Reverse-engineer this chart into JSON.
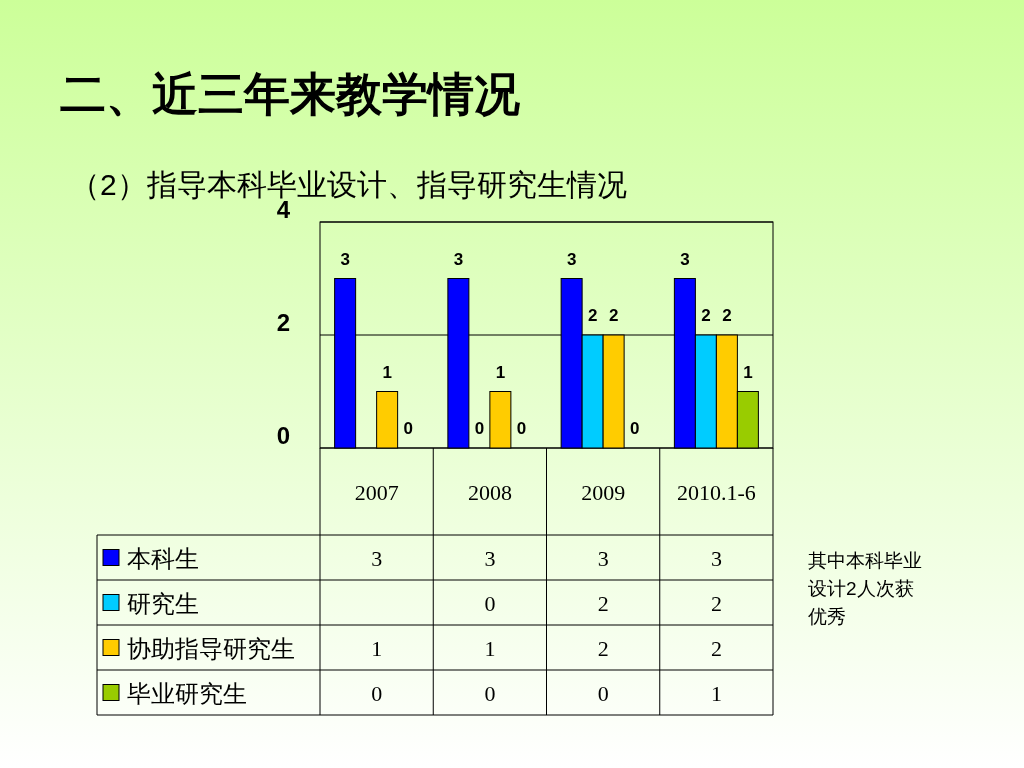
{
  "chart_data": {
    "type": "bar",
    "title": "二、近三年来教学情况",
    "subtitle": "（2）指导本科毕业设计、指导研究生情况",
    "categories": [
      "2007",
      "2008",
      "2009",
      "2010.1-6"
    ],
    "series": [
      {
        "name": "本科生",
        "color": "#0000ff",
        "values": [
          3,
          3,
          3,
          3
        ],
        "value_labels": [
          "3",
          "3",
          "3",
          "3"
        ]
      },
      {
        "name": "研究生",
        "color": "#00ccff",
        "values": [
          null,
          0,
          2,
          2
        ],
        "value_labels": [
          null,
          "0",
          "2",
          "2"
        ]
      },
      {
        "name": "协助指导研究生",
        "color": "#ffcc00",
        "values": [
          1,
          1,
          2,
          2
        ],
        "value_labels": [
          "1",
          "1",
          "2",
          "2"
        ]
      },
      {
        "name": "毕业研究生",
        "color": "#99cc00",
        "values": [
          0,
          0,
          0,
          1
        ],
        "value_labels": [
          "0",
          "0",
          "0",
          "1"
        ]
      }
    ],
    "ylim": [
      0,
      4
    ],
    "yticks": [
      0,
      2,
      4
    ],
    "grid": "y",
    "data_labels": true,
    "legend": "bottom",
    "annotations": [
      "其中本科毕业设计2人次获优秀"
    ]
  }
}
